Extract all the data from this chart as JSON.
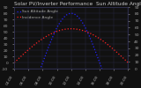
{
  "title": "Solar PV/Inverter Performance  Sun Altitude Angle & Sun Incidence Angle on PV Panels",
  "legend_blue": "Sun Altitude Angle",
  "legend_red": "Incidence Angle",
  "bg_color": "#111111",
  "plot_bg": "#111111",
  "grid_color": "#333355",
  "blue_color": "#2222ff",
  "red_color": "#ff2222",
  "title_color": "#cccccc",
  "tick_color": "#aaaaaa",
  "x_start": 4,
  "x_end": 20,
  "y_min": -10,
  "y_max": 90,
  "y_right_min": 0,
  "y_right_max": 90,
  "x_ticks": [
    4,
    6,
    8,
    10,
    12,
    14,
    16,
    18,
    20
  ],
  "x_labels": [
    "04:00",
    "06:00",
    "08:00",
    "10:00",
    "12:00",
    "14:00",
    "16:00",
    "18:00",
    "20:00"
  ],
  "y_ticks_left": [
    -10,
    0,
    10,
    20,
    30,
    40,
    50,
    60,
    70,
    80,
    90
  ],
  "y_ticks_right": [
    0,
    10,
    20,
    30,
    40,
    50,
    60,
    70,
    80,
    90
  ],
  "title_fontsize": 4.2,
  "tick_fontsize": 3.2,
  "legend_fontsize": 3.2,
  "linewidth": 0.9
}
